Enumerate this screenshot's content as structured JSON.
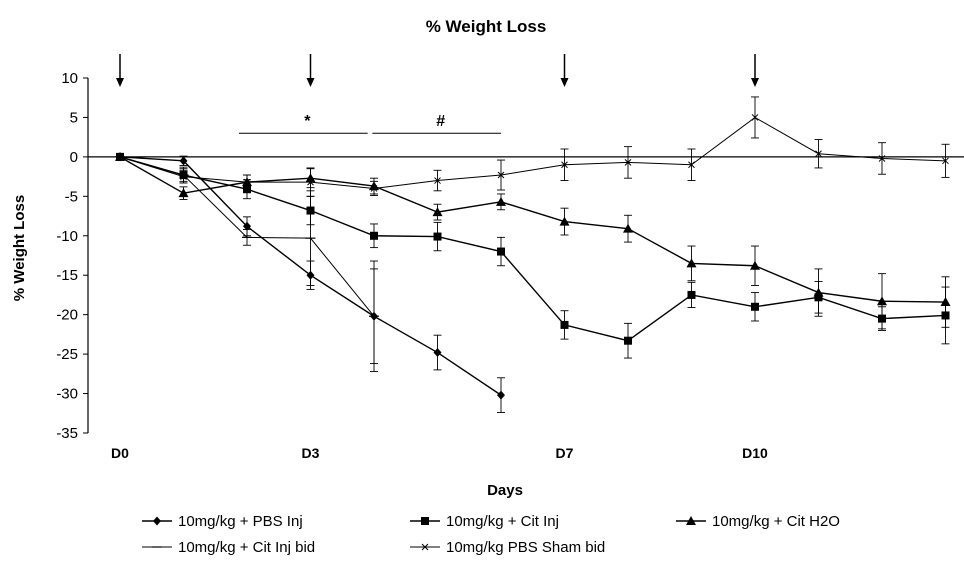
{
  "chart_data": {
    "type": "line",
    "title": "% Weight Loss",
    "xlabel": "Days",
    "ylabel": "% Weight Loss",
    "ylim": [
      -35,
      10
    ],
    "yticks": [
      10,
      5,
      0,
      -5,
      -10,
      -15,
      -20,
      -25,
      -30,
      -35
    ],
    "x": [
      0,
      1,
      2,
      3,
      4,
      5,
      6,
      7,
      8,
      9,
      10,
      11,
      12,
      13
    ],
    "x_tick_labels": [
      {
        "x": 0,
        "label": "D0"
      },
      {
        "x": 3,
        "label": "D3"
      },
      {
        "x": 7,
        "label": "D7"
      },
      {
        "x": 10,
        "label": "D10"
      }
    ],
    "arrows_at_x": [
      0,
      3,
      7,
      10
    ],
    "annotations": [
      {
        "text": "*",
        "x_start": 2,
        "x_end": 3.9,
        "y": 3
      },
      {
        "text": "#",
        "x_start": 4.1,
        "x_end": 6,
        "y": 3
      }
    ],
    "grid": false,
    "legend_position": "bottom",
    "series": [
      {
        "name": "10mg/kg + PBS Inj",
        "marker": "diamond",
        "values": [
          0,
          -0.5,
          -8.8,
          -15,
          -20.2,
          -24.8,
          -30.2,
          null,
          null,
          null,
          null,
          null,
          null,
          null
        ],
        "errors": [
          0.3,
          0.6,
          1.2,
          1.8,
          6,
          2.2,
          2.2,
          null,
          null,
          null,
          null,
          null,
          null,
          null
        ]
      },
      {
        "name": "10mg/kg + Cit Inj",
        "marker": "square",
        "values": [
          0,
          -2.3,
          -4.1,
          -6.8,
          -10,
          -10.1,
          -12,
          -21.3,
          -23.3,
          -17.5,
          -19,
          -17.8,
          -20.5,
          -20.1
        ],
        "errors": [
          0.3,
          1.0,
          1.2,
          1.8,
          1.5,
          1.8,
          1.8,
          1.8,
          2.2,
          1.6,
          1.8,
          2.0,
          1.5,
          3.6
        ]
      },
      {
        "name": "10mg/kg + Cit H2O",
        "marker": "triangle",
        "values": [
          0,
          -4.6,
          -3.2,
          -2.7,
          -3.7,
          -7,
          -5.7,
          -8.2,
          -9.1,
          -13.5,
          -13.8,
          -17.2,
          -18.3,
          -18.4
        ],
        "errors": [
          0.3,
          0.8,
          0.9,
          1.2,
          1.0,
          1.0,
          1.0,
          1.7,
          1.7,
          2.2,
          2.5,
          3.0,
          3.5,
          3.2
        ]
      },
      {
        "name": "10mg/kg + Cit Inj bid",
        "marker": "dash",
        "values": [
          0,
          -2.3,
          -10.2,
          -10.3,
          -20.2,
          null,
          null,
          null,
          null,
          null,
          null,
          null,
          null,
          null
        ],
        "errors": [
          0.3,
          0.8,
          1.0,
          6.0,
          7.0,
          null,
          null,
          null,
          null,
          null,
          null,
          null,
          null,
          null
        ]
      },
      {
        "name": "10mg/kg PBS Sham bid",
        "marker": "x",
        "values": [
          0,
          -2.5,
          -3.2,
          -3.2,
          -4,
          -3,
          -2.3,
          -1,
          -0.7,
          -1,
          5,
          0.4,
          -0.2,
          -0.5
        ],
        "errors": [
          0.3,
          0.8,
          0.9,
          1.8,
          0.9,
          1.3,
          1.9,
          2.0,
          2.0,
          2.0,
          2.6,
          1.8,
          2.0,
          2.1
        ]
      }
    ]
  }
}
